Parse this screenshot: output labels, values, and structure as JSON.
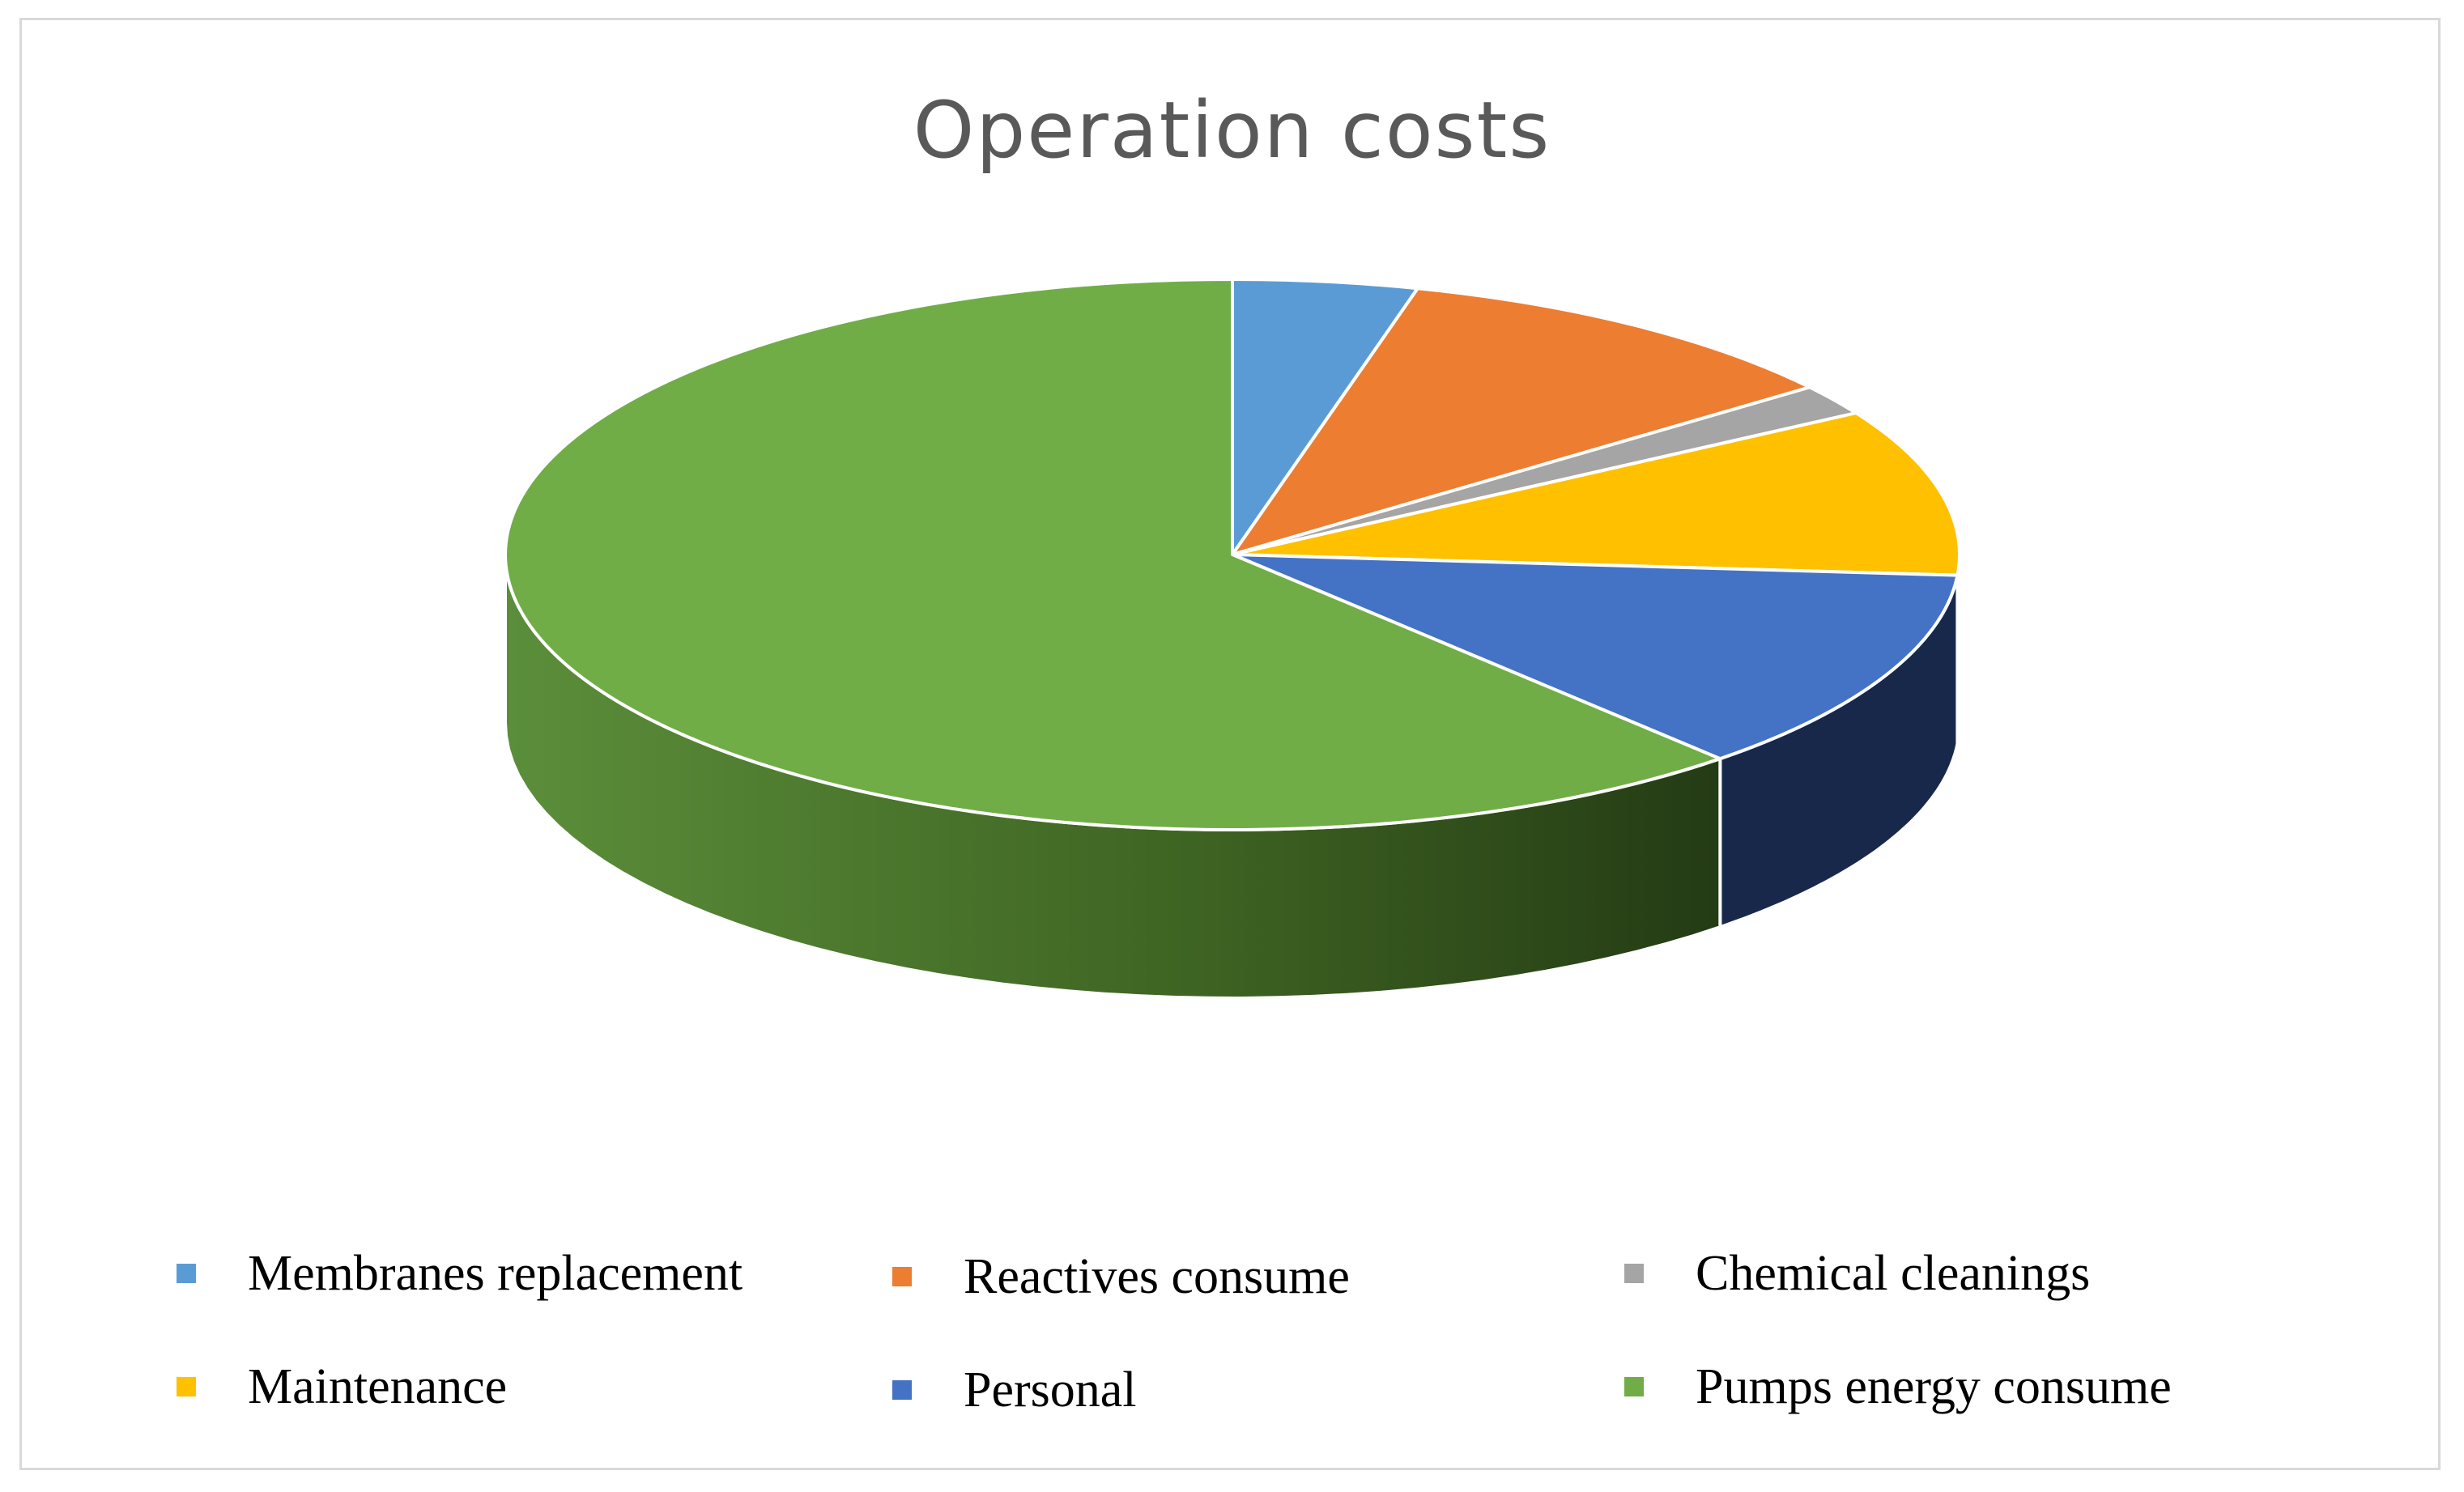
{
  "chart_data": {
    "type": "pie",
    "title": "Operation costs",
    "categories": [
      "Membranes replacement",
      "Reactives consume",
      "Chemical cleanings",
      "Maintenance",
      "Personal",
      "Pumps energy consume"
    ],
    "values": [
      4.1,
      10.5,
      1.8,
      9.8,
      12.1,
      61.7
    ],
    "unit": "%",
    "colors": [
      "#5b9bd5",
      "#ed7d31",
      "#a5a5a5",
      "#ffc000",
      "#4472c4",
      "#70ad47"
    ],
    "rendering": "3d",
    "start_angle": "12 o'clock",
    "direction": "clockwise",
    "legend_position": "bottom"
  }
}
